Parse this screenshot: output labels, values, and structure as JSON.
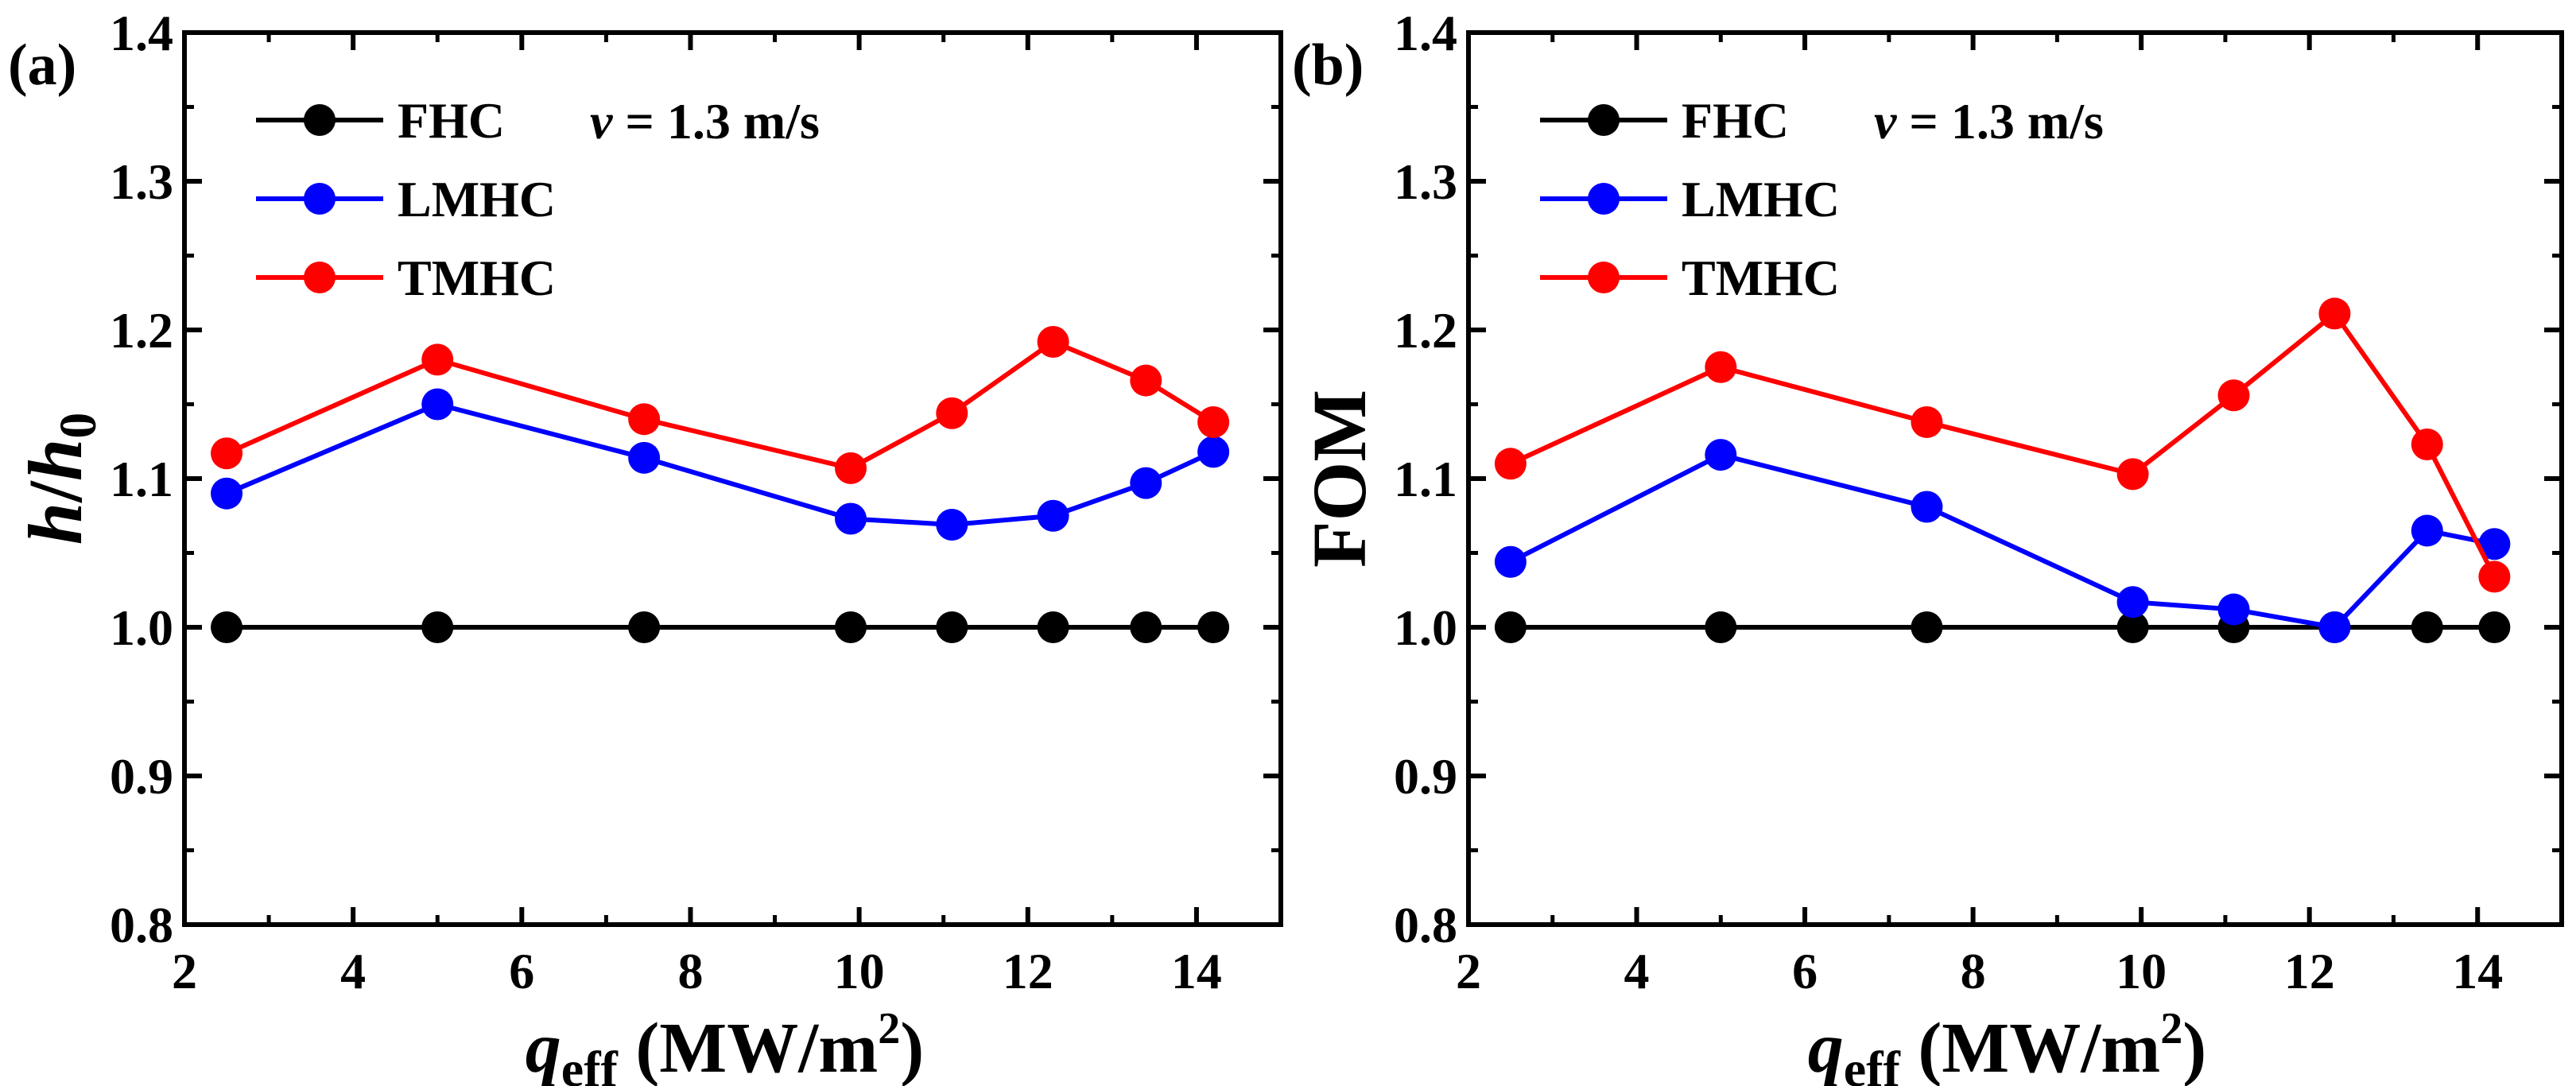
{
  "chart_data": [
    {
      "type": "line",
      "panel_label": "(a)",
      "annotation": "v = 1.3 m/s",
      "annotation_parts": {
        "var": "v",
        "rest": " = 1.3 m/s"
      },
      "xlabel": {
        "var": "q",
        "sub": "eff",
        "unit": " (MW/m",
        "sup": "2",
        "close": ")"
      },
      "ylabel": {
        "var": "h",
        "slash": "/",
        "var2": "h",
        "sub": "0"
      },
      "xlim": [
        2,
        15
      ],
      "ylim": [
        0.8,
        1.4
      ],
      "xticks": [
        "2",
        "4",
        "6",
        "8",
        "10",
        "12",
        "14"
      ],
      "yticks": [
        "0.8",
        "0.9",
        "1.0",
        "1.1",
        "1.2",
        "1.3",
        "1.4"
      ],
      "legend_placement": "top-left",
      "grid": false,
      "x": [
        2.5,
        5.0,
        7.45,
        9.9,
        11.1,
        12.3,
        13.4,
        14.2
      ],
      "series": [
        {
          "name": "FHC",
          "color": "#000000",
          "values": [
            1.0,
            1.0,
            1.0,
            1.0,
            1.0,
            1.0,
            1.0,
            1.0
          ]
        },
        {
          "name": "LMHC",
          "color": "#0000ff",
          "values": [
            1.09,
            1.15,
            1.114,
            1.073,
            1.069,
            1.075,
            1.097,
            1.118
          ]
        },
        {
          "name": "TMHC",
          "color": "#ff0000",
          "values": [
            1.117,
            1.18,
            1.14,
            1.107,
            1.144,
            1.192,
            1.166,
            1.138
          ]
        }
      ]
    },
    {
      "type": "line",
      "panel_label": "(b)",
      "annotation": "v = 1.3 m/s",
      "annotation_parts": {
        "var": "v",
        "rest": " = 1.3 m/s"
      },
      "xlabel": {
        "var": "q",
        "sub": "eff",
        "unit": " (MW/m",
        "sup": "2",
        "close": ")"
      },
      "ylabel": {
        "text": "FOM"
      },
      "xlim": [
        2,
        15
      ],
      "ylim": [
        0.8,
        1.4
      ],
      "xticks": [
        "2",
        "4",
        "6",
        "8",
        "10",
        "12",
        "14"
      ],
      "yticks": [
        "0.8",
        "0.9",
        "1.0",
        "1.1",
        "1.2",
        "1.3",
        "1.4"
      ],
      "legend_placement": "top-left",
      "grid": false,
      "x": [
        2.5,
        5.0,
        7.45,
        9.9,
        11.1,
        12.3,
        13.4,
        14.2
      ],
      "series": [
        {
          "name": "FHC",
          "color": "#000000",
          "values": [
            1.0,
            1.0,
            1.0,
            1.0,
            1.0,
            1.0,
            1.0,
            1.0
          ]
        },
        {
          "name": "LMHC",
          "color": "#0000ff",
          "values": [
            1.044,
            1.116,
            1.081,
            1.017,
            1.012,
            1.0,
            1.065,
            1.056
          ]
        },
        {
          "name": "TMHC",
          "color": "#ff0000",
          "values": [
            1.11,
            1.175,
            1.138,
            1.103,
            1.156,
            1.211,
            1.123,
            1.034
          ]
        }
      ]
    }
  ]
}
